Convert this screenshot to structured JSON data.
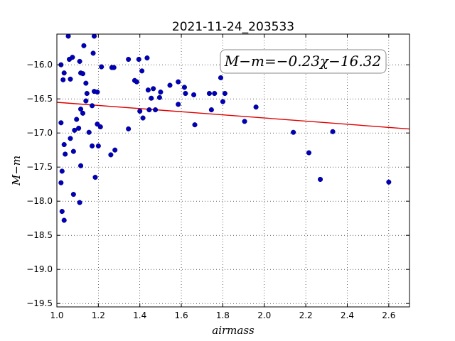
{
  "chart_data": {
    "type": "scatter",
    "title": "2021-11-24_203533",
    "xlabel": "airmass",
    "ylabel": "M−m",
    "xlim": [
      1.0,
      2.7
    ],
    "ylim": [
      -19.55,
      -15.55
    ],
    "xticks": [
      "1.0",
      "1.2",
      "1.4",
      "1.6",
      "1.8",
      "2.0",
      "2.2",
      "2.4",
      "2.6"
    ],
    "yticks": [
      "-16.0",
      "-16.5",
      "-17.0",
      "-17.5",
      "-18.0",
      "-18.5",
      "-19.0",
      "-19.5"
    ],
    "grid": true,
    "annotation": "M−m=−0.23χ−16.32",
    "fit": {
      "slope": -0.23,
      "intercept": -16.32,
      "color": "#dd0000"
    },
    "point_color": "#0000bb",
    "points": [
      [
        1.055,
        -15.58
      ],
      [
        1.18,
        -15.58
      ],
      [
        1.02,
        -16.0
      ],
      [
        1.035,
        -16.12
      ],
      [
        1.03,
        -16.22
      ],
      [
        1.06,
        -15.92
      ],
      [
        1.075,
        -15.89
      ],
      [
        1.065,
        -16.21
      ],
      [
        1.11,
        -15.95
      ],
      [
        1.13,
        -15.72
      ],
      [
        1.175,
        -15.83
      ],
      [
        1.115,
        -16.12
      ],
      [
        1.125,
        -16.13
      ],
      [
        1.215,
        -16.03
      ],
      [
        1.265,
        -16.04
      ],
      [
        1.275,
        -16.04
      ],
      [
        1.14,
        -16.27
      ],
      [
        1.145,
        -16.42
      ],
      [
        1.14,
        -16.53
      ],
      [
        1.18,
        -16.39
      ],
      [
        1.195,
        -16.4
      ],
      [
        1.17,
        -16.6
      ],
      [
        1.115,
        -16.65
      ],
      [
        1.125,
        -16.71
      ],
      [
        1.095,
        -16.8
      ],
      [
        1.105,
        -16.93
      ],
      [
        1.085,
        -16.96
      ],
      [
        1.065,
        -17.08
      ],
      [
        1.02,
        -16.85
      ],
      [
        1.035,
        -17.17
      ],
      [
        1.04,
        -17.31
      ],
      [
        1.08,
        -17.27
      ],
      [
        1.155,
        -16.99
      ],
      [
        1.195,
        -16.87
      ],
      [
        1.21,
        -16.91
      ],
      [
        1.17,
        -17.19
      ],
      [
        1.2,
        -17.19
      ],
      [
        1.28,
        -17.25
      ],
      [
        1.26,
        -17.32
      ],
      [
        1.115,
        -17.48
      ],
      [
        1.025,
        -17.56
      ],
      [
        1.02,
        -17.73
      ],
      [
        1.185,
        -17.65
      ],
      [
        1.08,
        -17.9
      ],
      [
        1.11,
        -18.02
      ],
      [
        1.025,
        -18.15
      ],
      [
        1.035,
        -18.28
      ],
      [
        1.345,
        -15.92
      ],
      [
        1.395,
        -15.92
      ],
      [
        1.435,
        -15.9
      ],
      [
        1.41,
        -16.09
      ],
      [
        1.375,
        -16.23
      ],
      [
        1.385,
        -16.25
      ],
      [
        1.44,
        -16.37
      ],
      [
        1.465,
        -16.35
      ],
      [
        1.455,
        -16.49
      ],
      [
        1.495,
        -16.48
      ],
      [
        1.5,
        -16.4
      ],
      [
        1.545,
        -16.3
      ],
      [
        1.585,
        -16.25
      ],
      [
        1.615,
        -16.33
      ],
      [
        1.62,
        -16.42
      ],
      [
        1.66,
        -16.44
      ],
      [
        1.585,
        -16.58
      ],
      [
        1.4,
        -16.68
      ],
      [
        1.445,
        -16.66
      ],
      [
        1.475,
        -16.66
      ],
      [
        1.415,
        -16.78
      ],
      [
        1.345,
        -16.94
      ],
      [
        1.665,
        -16.88
      ],
      [
        1.735,
        -16.42
      ],
      [
        1.76,
        -16.42
      ],
      [
        1.81,
        -16.42
      ],
      [
        1.79,
        -16.19
      ],
      [
        1.8,
        -16.54
      ],
      [
        1.745,
        -16.66
      ],
      [
        1.96,
        -16.62
      ],
      [
        1.905,
        -16.83
      ],
      [
        2.14,
        -16.99
      ],
      [
        2.33,
        -16.98
      ],
      [
        2.215,
        -17.29
      ],
      [
        2.27,
        -17.68
      ],
      [
        2.6,
        -17.72
      ]
    ]
  }
}
